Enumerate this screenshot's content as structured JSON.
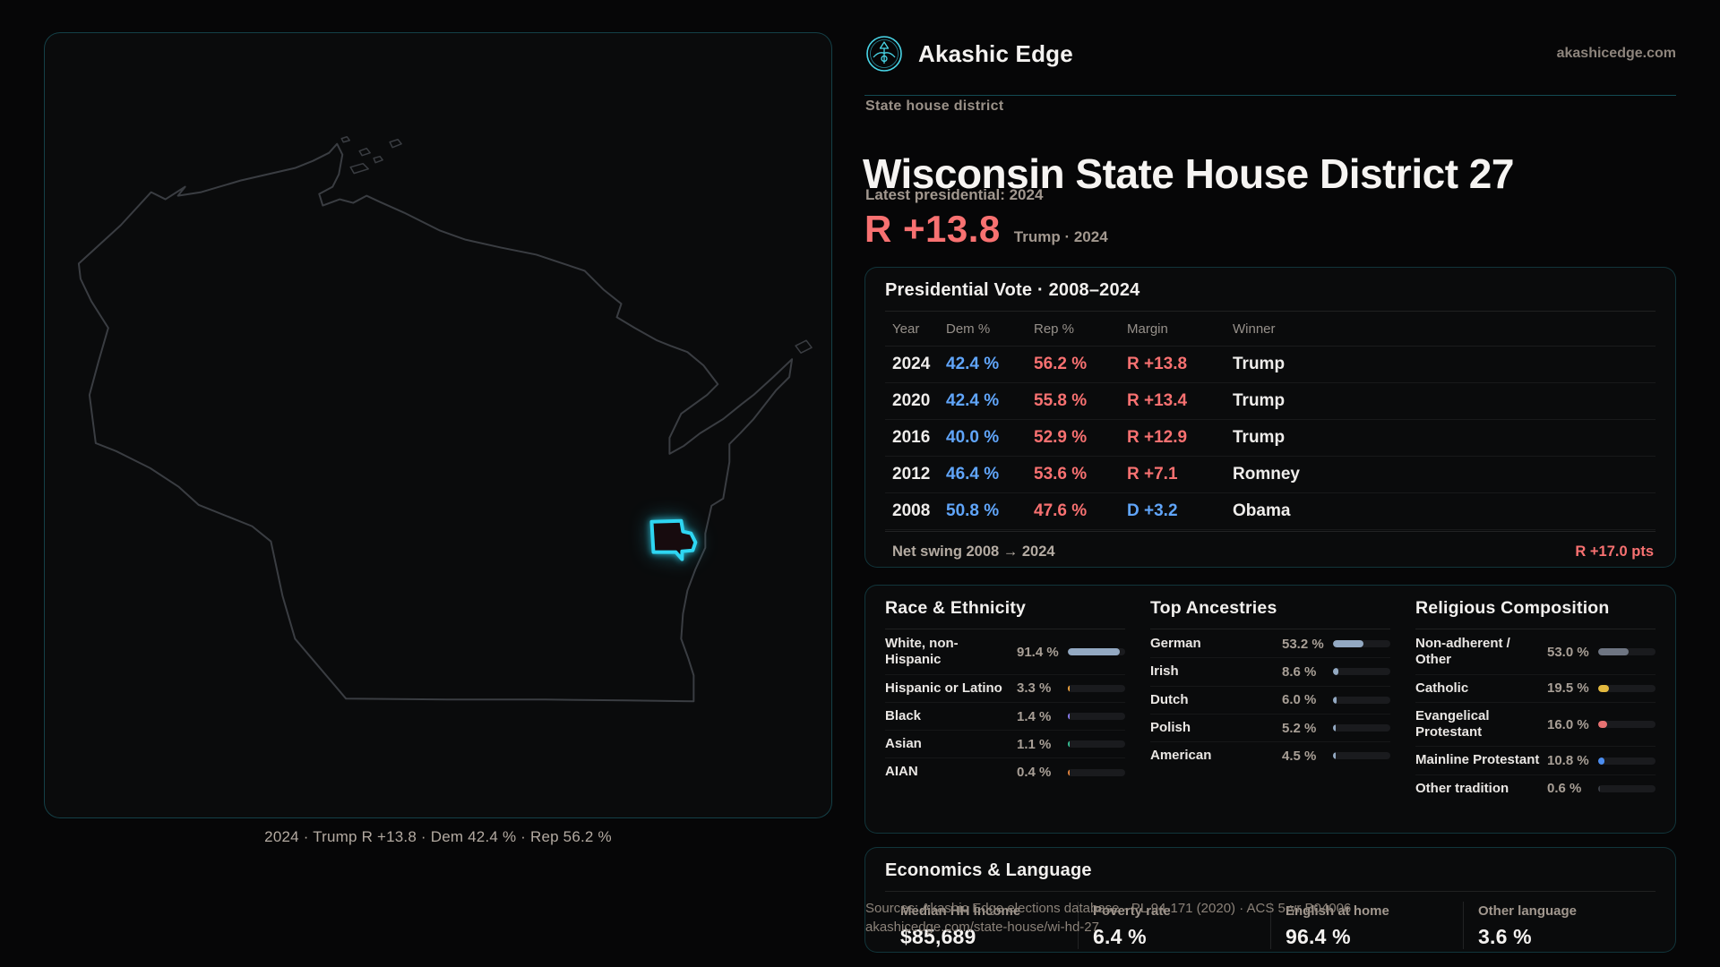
{
  "brand": {
    "name": "Akashic Edge",
    "domain_link": "akashicedge.com"
  },
  "page": {
    "kicker": "State house district",
    "title": "Wisconsin State House District 27",
    "latest_label": "Latest presidential: 2024",
    "headline_margin": "R +13.8",
    "headline_context": "Trump · 2024"
  },
  "map": {
    "caption": "2024 · Trump R +13.8 · Dem 42.4 % · Rep 56.2 %"
  },
  "vote_table": {
    "title": "Presidential Vote · 2008–2024",
    "columns": [
      "Year",
      "Dem %",
      "Rep %",
      "Margin",
      "Winner"
    ],
    "rows": [
      {
        "year": "2024",
        "dem": "42.4 %",
        "rep": "56.2 %",
        "margin": "R +13.8",
        "margin_color": "#f87171",
        "winner": "Trump"
      },
      {
        "year": "2020",
        "dem": "42.4 %",
        "rep": "55.8 %",
        "margin": "R +13.4",
        "margin_color": "#f87171",
        "winner": "Trump"
      },
      {
        "year": "2016",
        "dem": "40.0 %",
        "rep": "52.9 %",
        "margin": "R +12.9",
        "margin_color": "#f87171",
        "winner": "Trump"
      },
      {
        "year": "2012",
        "dem": "46.4 %",
        "rep": "53.6 %",
        "margin": "R +7.1",
        "margin_color": "#f87171",
        "winner": "Romney"
      },
      {
        "year": "2008",
        "dem": "50.8 %",
        "rep": "47.6 %",
        "margin": "D +3.2",
        "margin_color": "#60a5fa",
        "winner": "Obama"
      }
    ],
    "net_swing_label": "Net swing 2008 → 2024",
    "net_swing_value": "R +17.0 pts"
  },
  "race": {
    "title": "Race & Ethnicity",
    "rows": [
      {
        "label": "White, non-Hispanic",
        "value": "91.4 %",
        "pct": 91.4,
        "color": "#93a9c2"
      },
      {
        "label": "Hispanic or Latino",
        "value": "3.3 %",
        "pct": 3.3,
        "color": "#eda23d"
      },
      {
        "label": "Black",
        "value": "1.4 %",
        "pct": 1.4,
        "color": "#8a7df0"
      },
      {
        "label": "Asian",
        "value": "1.1 %",
        "pct": 1.1,
        "color": "#36bf94"
      },
      {
        "label": "AIAN",
        "value": "0.4 %",
        "pct": 0.4,
        "color": "#e0823c"
      }
    ]
  },
  "ancestries": {
    "title": "Top Ancestries",
    "rows": [
      {
        "label": "German",
        "value": "53.2 %",
        "pct": 53.2,
        "color": "#93a9c2"
      },
      {
        "label": "Irish",
        "value": "8.6 %",
        "pct": 8.6,
        "color": "#93a9c2"
      },
      {
        "label": "Dutch",
        "value": "6.0 %",
        "pct": 6.0,
        "color": "#93a9c2"
      },
      {
        "label": "Polish",
        "value": "5.2 %",
        "pct": 5.2,
        "color": "#93a9c2"
      },
      {
        "label": "American",
        "value": "4.5 %",
        "pct": 4.5,
        "color": "#93a9c2"
      }
    ]
  },
  "religion": {
    "title": "Religious Composition",
    "rows": [
      {
        "label": "Non-adherent / Other",
        "value": "53.0 %",
        "pct": 53.0,
        "color": "#6e7582"
      },
      {
        "label": "Catholic",
        "value": "19.5 %",
        "pct": 19.5,
        "color": "#e3b93f"
      },
      {
        "label": "Evangelical Protestant",
        "value": "16.0 %",
        "pct": 16.0,
        "color": "#e87272"
      },
      {
        "label": "Mainline Protestant",
        "value": "10.8 %",
        "pct": 10.8,
        "color": "#4b8df0"
      },
      {
        "label": "Other tradition",
        "value": "0.6 %",
        "pct": 0.6,
        "color": "#3a3d44"
      }
    ]
  },
  "economics": {
    "title": "Economics & Language",
    "stats": [
      {
        "label": "Median HH income",
        "value": "$85,689"
      },
      {
        "label": "Poverty rate",
        "value": "6.4 %"
      },
      {
        "label": "English at home",
        "value": "96.4 %"
      },
      {
        "label": "Other language",
        "value": "3.6 %"
      }
    ]
  },
  "footer": {
    "line1": "Sources: Akashic Edge elections database · PL 94-171 (2020) · ACS 5-yr B04006",
    "line2": "akashicedge.com/state-house/wi-hd-27"
  },
  "colors": {
    "dem": "#60a5fa",
    "rep": "#f87171",
    "accent": "#2ed6f2"
  }
}
